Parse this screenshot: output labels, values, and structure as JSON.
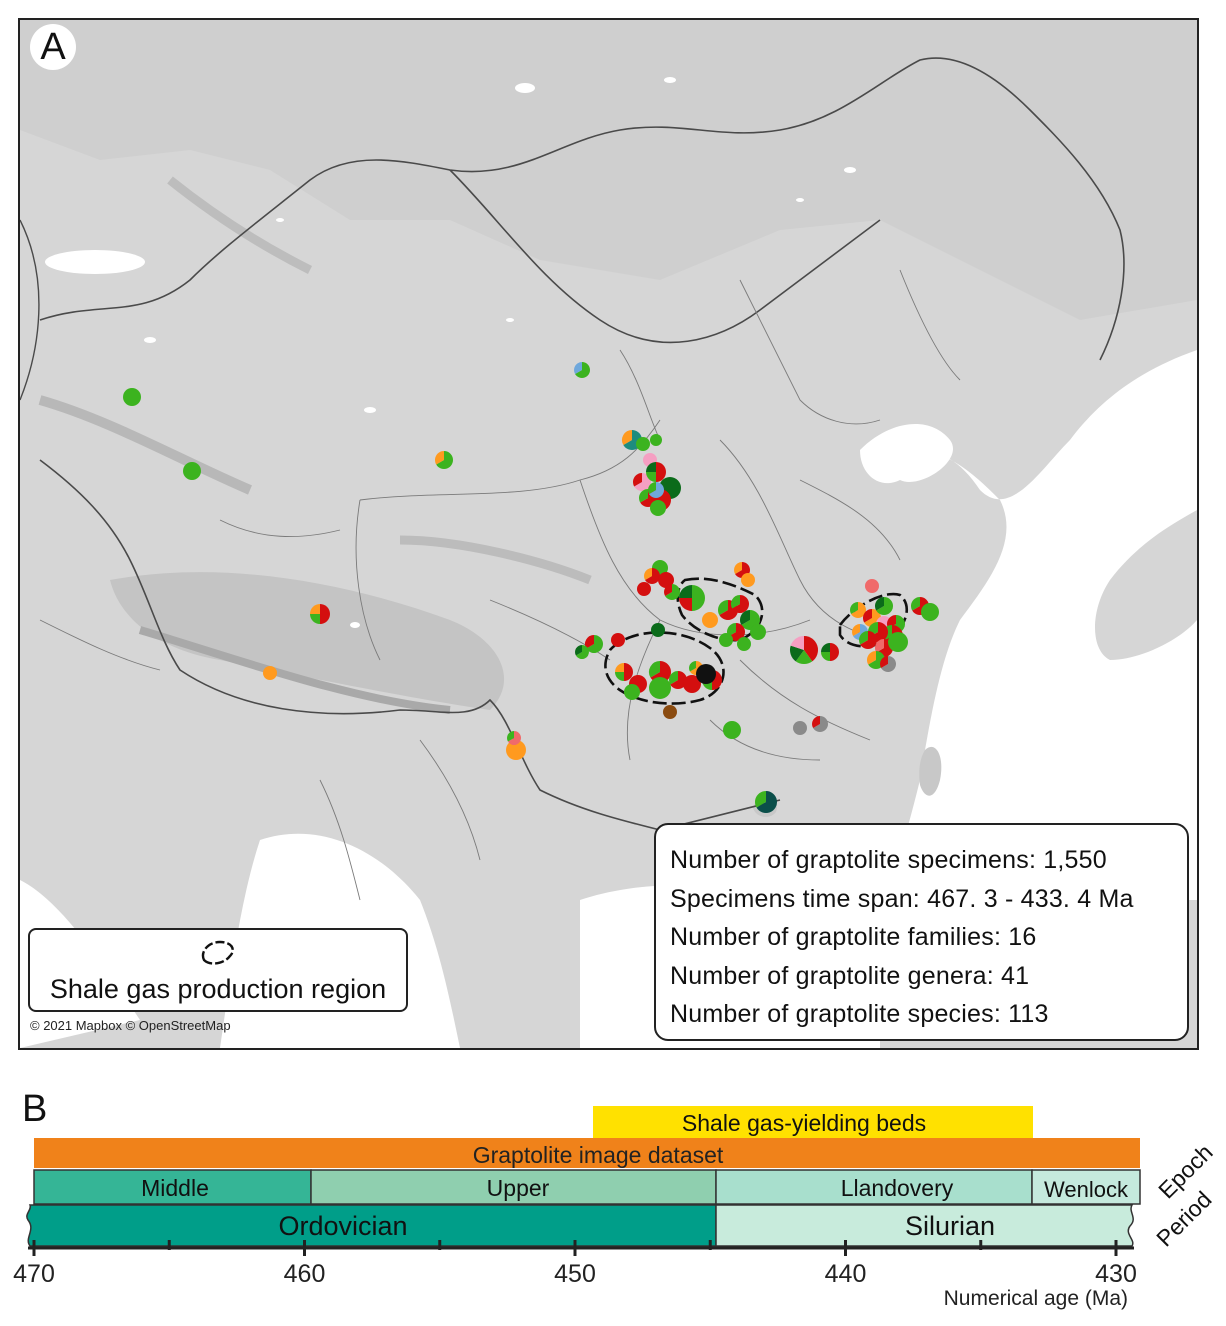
{
  "panel_a": {
    "letter": "A",
    "credit": "© 2021 Mapbox © OpenStreetMap",
    "stats": [
      "Number of graptolite specimens: 1,550",
      "Specimens time span: 467. 3 - 433. 4 Ma",
      "Number of graptolite families: 16",
      "Number of graptolite genera: 41",
      "Number of graptolite species: 113"
    ],
    "legend_label": "Shale gas production region",
    "colors": {
      "red": "#d40f0f",
      "green": "#3cb31f",
      "dark_green": "#0b6b1a",
      "orange": "#ff9a1f",
      "pink": "#f59fc2",
      "blue": "#6fa8dc",
      "teal": "#1e8c7e",
      "brown": "#8a4b10",
      "black": "#111111",
      "dark_teal": "#0b4f4a",
      "salmon": "#f06a6a",
      "grey": "#8a8a8a"
    }
  },
  "panel_b": {
    "letter": "B",
    "axis_title": "Numerical age (Ma)",
    "ticks": [
      "470",
      "460",
      "450",
      "440",
      "430"
    ],
    "bars": {
      "shale": "Shale gas-yielding beds",
      "dataset": "Graptolite image dataset"
    },
    "epochs": [
      "Middle",
      "Upper",
      "Llandovery",
      "Wenlock"
    ],
    "periods": [
      "Ordovician",
      "Silurian"
    ],
    "row_labels": {
      "epoch": "Epoch",
      "period": "Period"
    },
    "colors": {
      "shale": "#ffe100",
      "dataset": "#f0821a",
      "middle": "#35b596",
      "upper": "#8fcfaf",
      "llandovery": "#a8dfcd",
      "wenlock": "#c5e9dd",
      "ordovician": "#009e89",
      "silurian": "#c8ebdc"
    }
  }
}
